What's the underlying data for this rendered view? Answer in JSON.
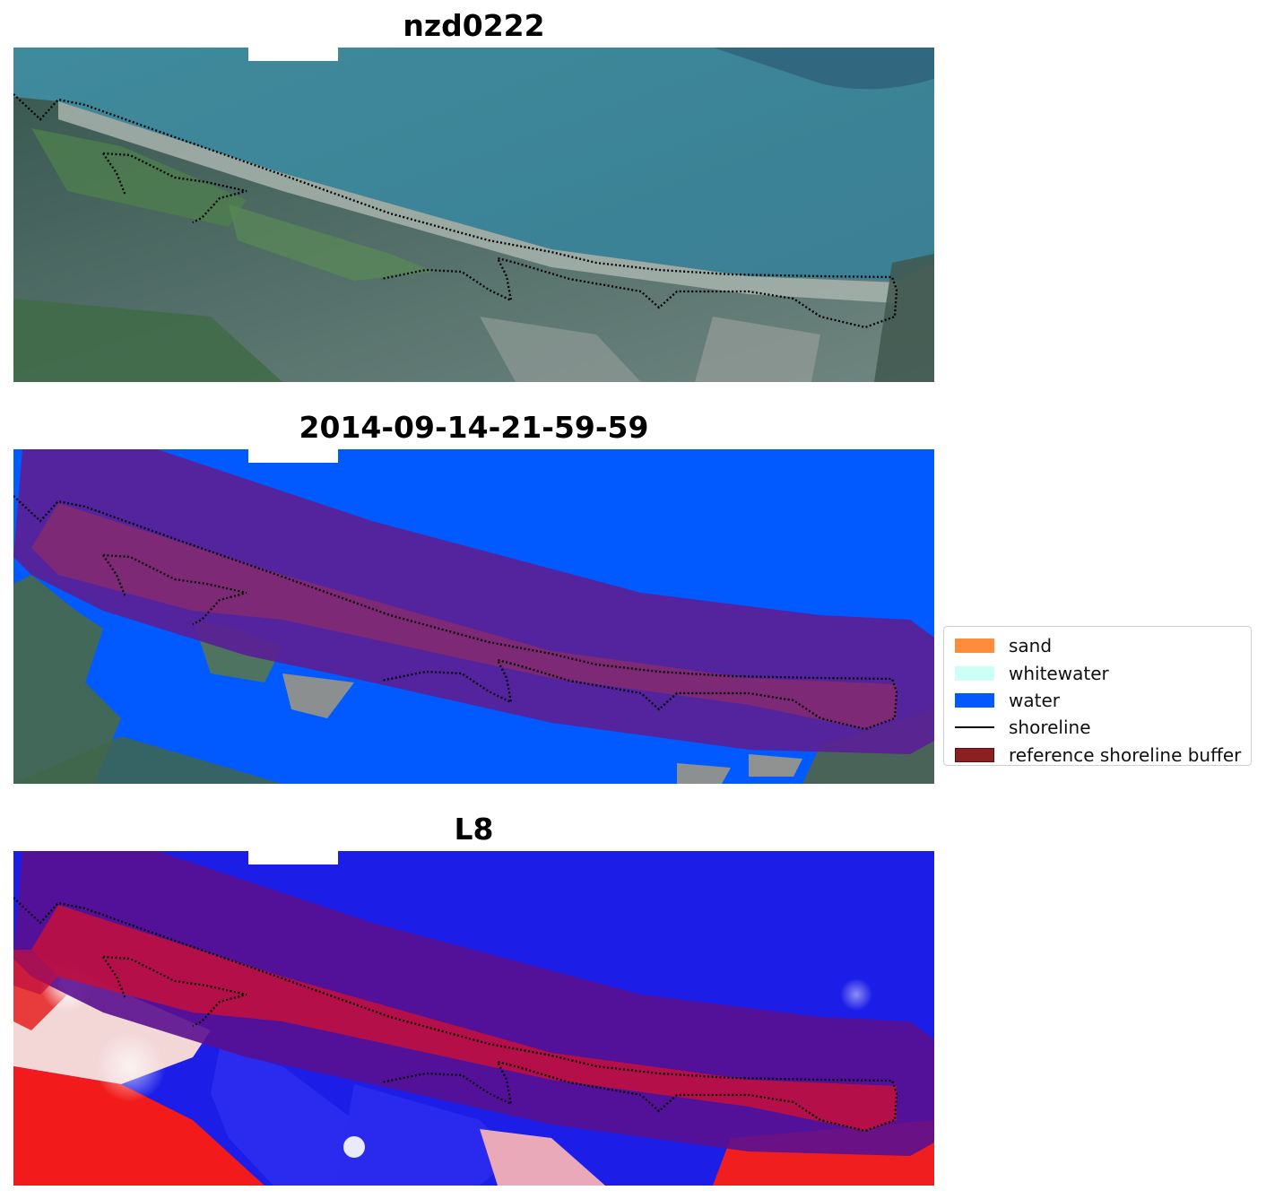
{
  "panels": [
    {
      "title": "nzd0222"
    },
    {
      "title": "2014-09-14-21-59-59"
    },
    {
      "title": "L8"
    }
  ],
  "legend": {
    "items": [
      {
        "label": "sand",
        "color": "#ff8c3a",
        "kind": "patch"
      },
      {
        "label": "whitewater",
        "color": "#ccfff8",
        "kind": "patch"
      },
      {
        "label": "water",
        "color": "#005aff",
        "kind": "patch"
      },
      {
        "label": "shoreline",
        "color": "#000000",
        "kind": "line"
      },
      {
        "label": "reference shoreline buffer",
        "color": "#8b2020",
        "kind": "patch"
      }
    ]
  }
}
